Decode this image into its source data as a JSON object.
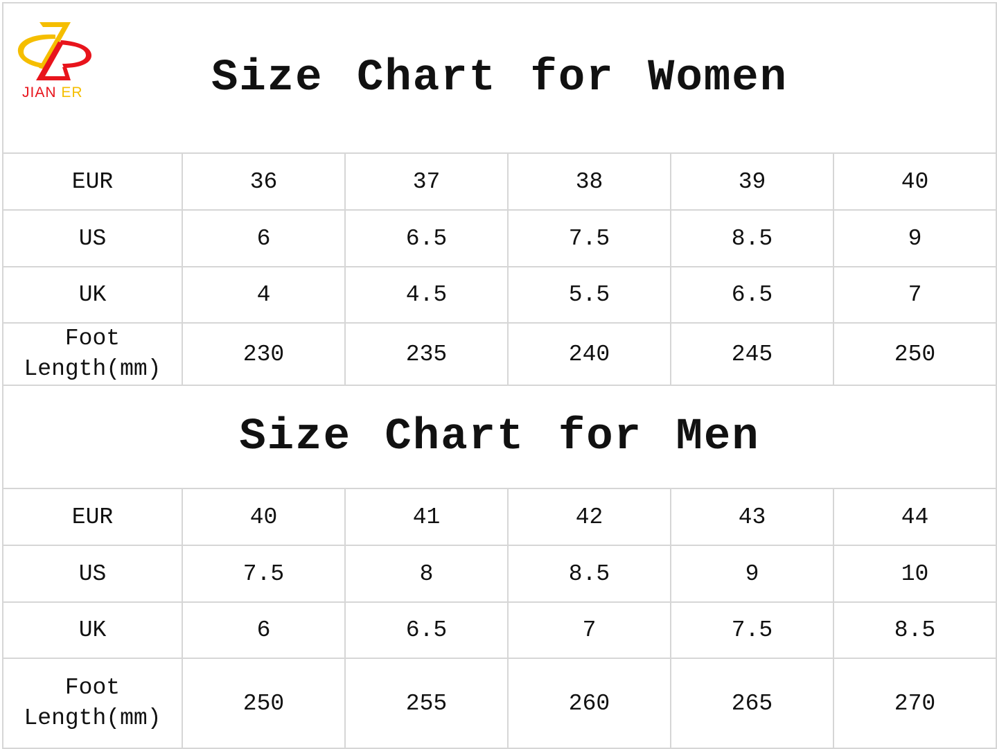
{
  "logo": {
    "brand_part1": "JIAN",
    "brand_part2": "ER",
    "colors": {
      "red": "#e8141c",
      "yellow": "#f5be00"
    }
  },
  "women": {
    "title": "Size Chart for Women",
    "rows": [
      {
        "label": "EUR",
        "values": [
          "36",
          "37",
          "38",
          "39",
          "40"
        ]
      },
      {
        "label": "US",
        "values": [
          "6",
          "6.5",
          "7.5",
          "8.5",
          "9"
        ]
      },
      {
        "label": "UK",
        "values": [
          "4",
          "4.5",
          "5.5",
          "6.5",
          "7"
        ]
      },
      {
        "label": "Foot Length(mm)",
        "values": [
          "230",
          "235",
          "240",
          "245",
          "250"
        ]
      }
    ]
  },
  "men": {
    "title": "Size Chart for Men",
    "rows": [
      {
        "label": "EUR",
        "values": [
          "40",
          "41",
          "42",
          "43",
          "44"
        ]
      },
      {
        "label": "US",
        "values": [
          "7.5",
          "8",
          "8.5",
          "9",
          "10"
        ]
      },
      {
        "label": "UK",
        "values": [
          "6",
          "6.5",
          "7",
          "7.5",
          "8.5"
        ]
      },
      {
        "label": "Foot Length(mm)",
        "values": [
          "250",
          "255",
          "260",
          "265",
          "270"
        ]
      }
    ]
  }
}
